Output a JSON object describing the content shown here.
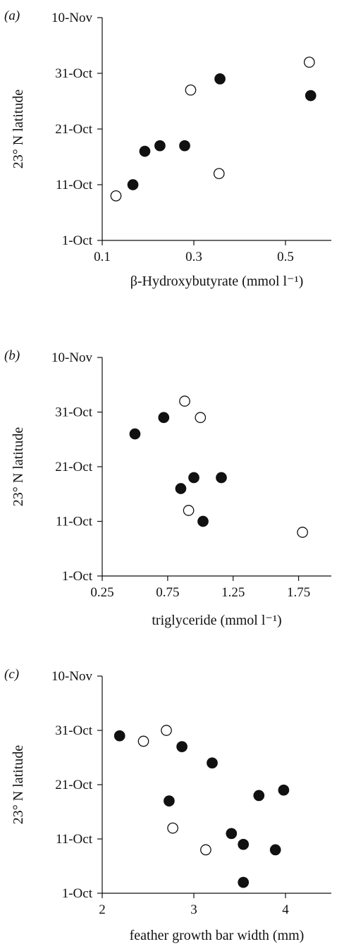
{
  "chart_data": [
    {
      "type": "scatter",
      "panel_label": "(a)",
      "xlabel": "β-Hydroxybutyrate (mmol l⁻¹)",
      "ylabel": "23° N latitude",
      "xlim": [
        0.1,
        0.6
      ],
      "xticks": [
        0.1,
        0.3,
        0.5
      ],
      "xtick_labels": [
        "0.1",
        "0.3",
        "0.5"
      ],
      "ylim": [
        0,
        40
      ],
      "yticks": [
        0,
        10,
        20,
        30,
        40
      ],
      "ytick_labels": [
        "1-Oct",
        "11-Oct",
        "21-Oct",
        "31-Oct",
        "10-Nov"
      ],
      "series": [
        {
          "marker": "filled",
          "color": "#111111",
          "points": [
            [
              0.167,
              "11-Oct"
            ],
            [
              0.193,
              "17-Oct"
            ],
            [
              0.226,
              "18-Oct"
            ],
            [
              0.28,
              "18-Oct"
            ],
            [
              0.357,
              "30-Oct"
            ],
            [
              0.555,
              "27-Oct"
            ]
          ]
        },
        {
          "marker": "open",
          "color": "#111111",
          "points": [
            [
              0.13,
              "9-Oct"
            ],
            [
              0.293,
              "28-Oct"
            ],
            [
              0.355,
              "13-Oct"
            ],
            [
              0.552,
              "2-Nov"
            ]
          ]
        }
      ]
    },
    {
      "type": "scatter",
      "panel_label": "(b)",
      "xlabel": "triglyceride (mmol l⁻¹)",
      "ylabel": "23° N latitude",
      "xlim": [
        0.25,
        2.0
      ],
      "xticks": [
        0.25,
        0.75,
        1.25,
        1.75
      ],
      "xtick_labels": [
        "0.25",
        "0.75",
        "1.25",
        "1.75"
      ],
      "ylim": [
        0,
        40
      ],
      "yticks": [
        0,
        10,
        20,
        30,
        40
      ],
      "ytick_labels": [
        "1-Oct",
        "11-Oct",
        "21-Oct",
        "31-Oct",
        "10-Nov"
      ],
      "series": [
        {
          "marker": "filled",
          "color": "#111111",
          "points": [
            [
              0.5,
              "27-Oct"
            ],
            [
              0.72,
              "30-Oct"
            ],
            [
              0.85,
              "17-Oct"
            ],
            [
              0.95,
              "19-Oct"
            ],
            [
              1.02,
              "11-Oct"
            ],
            [
              1.16,
              "19-Oct"
            ]
          ]
        },
        {
          "marker": "open",
          "color": "#111111",
          "points": [
            [
              0.88,
              "2-Nov"
            ],
            [
              0.91,
              "13-Oct"
            ],
            [
              1.0,
              "30-Oct"
            ],
            [
              1.78,
              "9-Oct"
            ]
          ]
        }
      ]
    },
    {
      "type": "scatter",
      "panel_label": "(c)",
      "xlabel": "feather growth bar width (mm)",
      "ylabel": "23° N latitude",
      "xlim": [
        2.0,
        4.5
      ],
      "xticks": [
        2,
        3,
        4
      ],
      "xtick_labels": [
        "2",
        "3",
        "4"
      ],
      "ylim": [
        0,
        40
      ],
      "yticks": [
        0,
        10,
        20,
        30,
        40
      ],
      "ytick_labels": [
        "1-Oct",
        "11-Oct",
        "21-Oct",
        "31-Oct",
        "10-Nov"
      ],
      "series": [
        {
          "marker": "filled",
          "color": "#111111",
          "points": [
            [
              2.19,
              "30-Oct"
            ],
            [
              2.73,
              "18-Oct"
            ],
            [
              2.87,
              "28-Oct"
            ],
            [
              3.2,
              "25-Oct"
            ],
            [
              3.41,
              "12-Oct"
            ],
            [
              3.54,
              "10-Oct"
            ],
            [
              3.54,
              "3-Oct"
            ],
            [
              3.71,
              "19-Oct"
            ],
            [
              3.89,
              "9-Oct"
            ],
            [
              3.98,
              "20-Oct"
            ]
          ]
        },
        {
          "marker": "open",
          "color": "#111111",
          "points": [
            [
              2.45,
              "29-Oct"
            ],
            [
              2.7,
              "31-Oct"
            ],
            [
              2.77,
              "13-Oct"
            ],
            [
              3.13,
              "9-Oct"
            ]
          ]
        }
      ]
    }
  ]
}
